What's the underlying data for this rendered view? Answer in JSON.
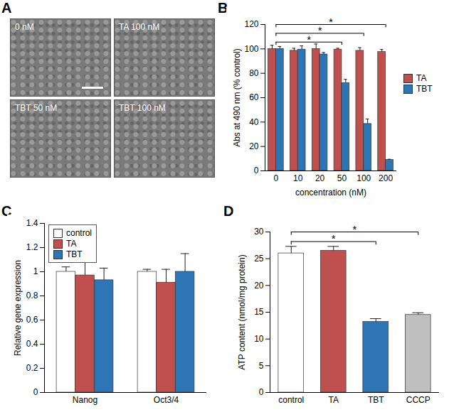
{
  "chart_data": [
    {
      "panel": "A",
      "type": "images",
      "labels": [
        "0 nM",
        "TA 100 nM",
        "TBT 50 nM",
        "TBT 100 nM"
      ]
    },
    {
      "panel": "B",
      "type": "bar",
      "x_label": "concentration (nM)",
      "y_label": "Abs at 490 nm (% control)",
      "categories": [
        "0",
        "10",
        "20",
        "50",
        "100",
        "200"
      ],
      "series": [
        {
          "name": "TA",
          "color": "#c0504d",
          "values": [
            100,
            98.5,
            100,
            99.5,
            98.5,
            97.5
          ],
          "errors": [
            3,
            2,
            4,
            1,
            2.5,
            2
          ]
        },
        {
          "name": "TBT",
          "color": "#2e75b6",
          "values": [
            100,
            99.5,
            95.5,
            72,
            38.5,
            9
          ],
          "errors": [
            2,
            3,
            1.5,
            3,
            4,
            0.5
          ]
        }
      ],
      "ylim": [
        0,
        120
      ],
      "yticks": [
        0,
        20,
        40,
        60,
        80,
        100,
        120
      ],
      "legend": "right",
      "significance": [
        {
          "from": "0",
          "to": "50",
          "label": "*"
        },
        {
          "from": "0",
          "to": "100",
          "label": "*"
        },
        {
          "from": "0",
          "to": "200",
          "label": "*"
        }
      ]
    },
    {
      "panel": "C",
      "type": "bar",
      "y_label": "Relative gene expression",
      "categories": [
        "Nanog",
        "Oct3/4"
      ],
      "series": [
        {
          "name": "control",
          "color": "#ffffff",
          "values": [
            1.0,
            1.0
          ],
          "errors": [
            0.04,
            0.02
          ]
        },
        {
          "name": "TA",
          "color": "#c0504d",
          "values": [
            0.97,
            0.91
          ],
          "errors": [
            0.12,
            0.11
          ]
        },
        {
          "name": "TBT",
          "color": "#2e75b6",
          "values": [
            0.93,
            1.0
          ],
          "errors": [
            0.1,
            0.15
          ]
        }
      ],
      "ylim": [
        0,
        1.4
      ],
      "yticks": [
        0,
        0.2,
        0.4,
        0.6,
        0.8,
        1,
        1.2,
        1.4
      ],
      "legend": "top-left"
    },
    {
      "panel": "D",
      "type": "bar",
      "y_label": "ATP content (nmol/mg protein)",
      "categories": [
        "control",
        "TA",
        "TBT",
        "CCCP"
      ],
      "values": [
        26,
        26.5,
        13.2,
        14.5
      ],
      "errors": [
        1.3,
        0.8,
        0.6,
        0.4
      ],
      "colors": [
        "#ffffff",
        "#c0504d",
        "#2e75b6",
        "#bfbfbf"
      ],
      "ylim": [
        0,
        30
      ],
      "yticks": [
        0,
        5,
        10,
        15,
        20,
        25,
        30
      ],
      "significance": [
        {
          "from": "control",
          "to": "TBT",
          "label": "*"
        },
        {
          "from": "control",
          "to": "CCCP",
          "label": "*"
        }
      ]
    }
  ]
}
